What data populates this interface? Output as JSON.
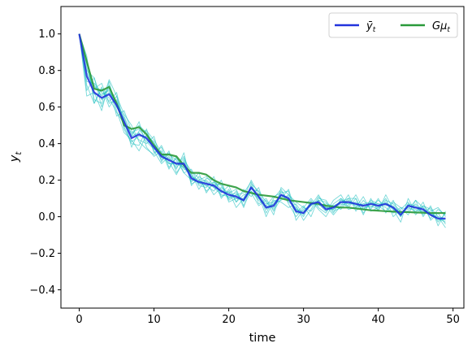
{
  "chart_data": {
    "type": "line",
    "xlabel": "time",
    "ylabel": "y",
    "ylabel_sub": "t",
    "xlim": [
      -2.45,
      51.45
    ],
    "ylim": [
      -0.5,
      1.15
    ],
    "xticks": [
      0,
      10,
      20,
      30,
      40,
      50
    ],
    "yticks": [
      -0.4,
      -0.2,
      0.0,
      0.2,
      0.4,
      0.6,
      0.8,
      1.0
    ],
    "xtick_labels": [
      "0",
      "10",
      "20",
      "30",
      "40",
      "50"
    ],
    "ytick_labels": [
      "−0.4",
      "−0.2",
      "0.0",
      "0.2",
      "0.4",
      "0.6",
      "0.8",
      "1.0"
    ],
    "grid": false,
    "legend": {
      "placement": "top-right",
      "entries": [
        {
          "key": "ybar",
          "base": "ȳ",
          "sub": "t",
          "color": "#2233dd"
        },
        {
          "key": "gmu",
          "base": "Gμ",
          "sub": "t",
          "color": "#2a9a3a"
        }
      ]
    },
    "colors": {
      "ybar": "#2233dd",
      "gmu": "#2a9a3a",
      "samples": "#20c0c0"
    },
    "x": [
      0,
      1,
      2,
      3,
      4,
      5,
      6,
      7,
      8,
      9,
      10,
      11,
      12,
      13,
      14,
      15,
      16,
      17,
      18,
      19,
      20,
      21,
      22,
      23,
      24,
      25,
      26,
      27,
      28,
      29,
      30,
      31,
      32,
      33,
      34,
      35,
      36,
      37,
      38,
      39,
      40,
      41,
      42,
      43,
      44,
      45,
      46,
      47,
      48,
      49
    ],
    "series": [
      {
        "name": "ȳ_t",
        "color": "#2233dd",
        "values": [
          1.0,
          0.77,
          0.68,
          0.65,
          0.67,
          0.61,
          0.52,
          0.43,
          0.45,
          0.43,
          0.38,
          0.33,
          0.31,
          0.29,
          0.29,
          0.21,
          0.19,
          0.18,
          0.17,
          0.14,
          0.12,
          0.11,
          0.09,
          0.16,
          0.11,
          0.05,
          0.06,
          0.12,
          0.1,
          0.03,
          0.02,
          0.07,
          0.08,
          0.04,
          0.05,
          0.08,
          0.08,
          0.07,
          0.06,
          0.07,
          0.06,
          0.07,
          0.05,
          0.01,
          0.06,
          0.05,
          0.04,
          0.01,
          -0.01,
          -0.01
        ]
      },
      {
        "name": "Gμ_t",
        "color": "#2a9a3a",
        "values": [
          1.0,
          0.85,
          0.7,
          0.69,
          0.71,
          0.62,
          0.5,
          0.48,
          0.49,
          0.45,
          0.39,
          0.34,
          0.34,
          0.33,
          0.28,
          0.24,
          0.24,
          0.23,
          0.2,
          0.18,
          0.17,
          0.16,
          0.14,
          0.13,
          0.12,
          0.115,
          0.11,
          0.1,
          0.09,
          0.085,
          0.08,
          0.075,
          0.07,
          0.06,
          0.055,
          0.05,
          0.05,
          0.045,
          0.04,
          0.035,
          0.033,
          0.03,
          0.028,
          0.026,
          0.025,
          0.023,
          0.022,
          0.02,
          0.02,
          0.02
        ]
      }
    ],
    "sample_paths": [
      [
        1.0,
        0.84,
        0.72,
        0.66,
        0.7,
        0.62,
        0.55,
        0.45,
        0.5,
        0.46,
        0.4,
        0.33,
        0.35,
        0.28,
        0.33,
        0.22,
        0.2,
        0.22,
        0.17,
        0.18,
        0.1,
        0.14,
        0.05,
        0.18,
        0.14,
        0.02,
        0.1,
        0.15,
        0.07,
        0.0,
        0.05,
        0.1,
        0.05,
        0.02,
        0.09,
        0.12,
        0.05,
        0.1,
        0.01,
        0.1,
        0.03,
        0.12,
        0.04,
        -0.03,
        0.1,
        0.02,
        0.08,
        -0.02,
        0.02,
        -0.04
      ],
      [
        1.0,
        0.72,
        0.62,
        0.71,
        0.6,
        0.66,
        0.48,
        0.4,
        0.39,
        0.48,
        0.35,
        0.38,
        0.27,
        0.32,
        0.26,
        0.24,
        0.15,
        0.21,
        0.2,
        0.1,
        0.15,
        0.08,
        0.12,
        0.13,
        0.06,
        0.09,
        0.01,
        0.16,
        0.12,
        0.06,
        -0.02,
        0.04,
        0.11,
        0.06,
        0.01,
        0.06,
        0.12,
        0.03,
        0.09,
        0.04,
        0.1,
        0.02,
        0.08,
        0.05,
        0.01,
        0.09,
        0.0,
        0.06,
        -0.05,
        0.03
      ],
      [
        1.0,
        0.8,
        0.76,
        0.6,
        0.72,
        0.55,
        0.58,
        0.47,
        0.42,
        0.4,
        0.44,
        0.3,
        0.36,
        0.24,
        0.3,
        0.19,
        0.24,
        0.13,
        0.19,
        0.17,
        0.09,
        0.12,
        0.13,
        0.19,
        0.07,
        0.1,
        0.03,
        0.1,
        0.15,
        0.02,
        0.06,
        0.0,
        0.1,
        0.09,
        0.03,
        0.05,
        0.1,
        0.1,
        0.02,
        0.08,
        0.06,
        0.03,
        0.09,
        0.0,
        0.07,
        0.06,
        0.01,
        0.05,
        0.0,
        -0.06
      ],
      [
        1.0,
        0.88,
        0.62,
        0.7,
        0.63,
        0.68,
        0.5,
        0.44,
        0.52,
        0.38,
        0.33,
        0.36,
        0.26,
        0.33,
        0.24,
        0.26,
        0.17,
        0.16,
        0.22,
        0.11,
        0.14,
        0.05,
        0.1,
        0.2,
        0.12,
        0.0,
        0.09,
        0.08,
        0.05,
        0.07,
        0.01,
        0.09,
        0.04,
        0.0,
        0.07,
        0.1,
        0.04,
        0.05,
        0.11,
        0.03,
        0.05,
        0.1,
        0.0,
        0.04,
        0.08,
        0.01,
        0.06,
        0.04,
        -0.03,
        0.02
      ],
      [
        1.0,
        0.66,
        0.68,
        0.58,
        0.74,
        0.58,
        0.46,
        0.42,
        0.36,
        0.45,
        0.36,
        0.29,
        0.33,
        0.26,
        0.35,
        0.17,
        0.22,
        0.19,
        0.12,
        0.16,
        0.13,
        0.15,
        0.06,
        0.14,
        0.09,
        0.06,
        0.11,
        0.13,
        0.14,
        -0.02,
        0.04,
        0.06,
        0.12,
        0.05,
        0.04,
        0.07,
        0.06,
        0.12,
        0.04,
        0.09,
        0.07,
        0.05,
        0.02,
        0.05,
        0.04,
        0.09,
        0.05,
        -0.01,
        0.04,
        0.01
      ],
      [
        1.0,
        0.79,
        0.7,
        0.73,
        0.62,
        0.64,
        0.53,
        0.38,
        0.47,
        0.47,
        0.42,
        0.35,
        0.29,
        0.3,
        0.27,
        0.23,
        0.18,
        0.17,
        0.14,
        0.2,
        0.08,
        0.1,
        0.1,
        0.15,
        0.14,
        0.08,
        0.04,
        0.12,
        0.08,
        0.05,
        0.0,
        0.08,
        0.06,
        0.07,
        0.06,
        0.04,
        0.09,
        0.06,
        0.07,
        0.05,
        0.09,
        0.06,
        0.06,
        0.02,
        0.05,
        0.03,
        0.06,
        0.02,
        -0.01,
        -0.02
      ],
      [
        1.0,
        0.86,
        0.64,
        0.62,
        0.75,
        0.66,
        0.56,
        0.5,
        0.41,
        0.37,
        0.34,
        0.39,
        0.3,
        0.23,
        0.31,
        0.25,
        0.21,
        0.14,
        0.18,
        0.13,
        0.17,
        0.08,
        0.15,
        0.11,
        0.16,
        0.04,
        0.07,
        0.09,
        0.12,
        0.08,
        0.05,
        0.03,
        0.09,
        0.08,
        0.02,
        0.1,
        0.07,
        0.08,
        0.05,
        0.06,
        0.04,
        0.09,
        0.07,
        0.03,
        0.03,
        0.07,
        0.02,
        0.03,
        0.05,
        0.0
      ],
      [
        1.0,
        0.74,
        0.73,
        0.68,
        0.65,
        0.57,
        0.51,
        0.46,
        0.48,
        0.42,
        0.38,
        0.31,
        0.34,
        0.31,
        0.24,
        0.2,
        0.19,
        0.2,
        0.16,
        0.12,
        0.11,
        0.13,
        0.08,
        0.17,
        0.1,
        0.06,
        0.05,
        0.14,
        0.09,
        0.04,
        0.03,
        0.07,
        0.07,
        0.03,
        0.06,
        0.08,
        0.1,
        0.05,
        0.07,
        0.08,
        0.06,
        0.07,
        0.04,
        0.01,
        0.06,
        0.05,
        0.05,
        0.01,
        -0.02,
        -0.01
      ],
      [
        1.0,
        0.69,
        0.76,
        0.64,
        0.68,
        0.63,
        0.49,
        0.41,
        0.44,
        0.44,
        0.41,
        0.32,
        0.32,
        0.27,
        0.32,
        0.18,
        0.2,
        0.17,
        0.19,
        0.15,
        0.1,
        0.12,
        0.09,
        0.14,
        0.1,
        0.07,
        0.08,
        0.11,
        0.11,
        0.02,
        0.02,
        0.06,
        0.09,
        0.04,
        0.04,
        0.09,
        0.08,
        0.07,
        0.04,
        0.07,
        0.05,
        0.08,
        0.05,
        0.0,
        0.07,
        0.04,
        0.03,
        0.02,
        -0.01,
        -0.03
      ],
      [
        1.0,
        0.82,
        0.67,
        0.67,
        0.69,
        0.6,
        0.54,
        0.44,
        0.46,
        0.41,
        0.37,
        0.34,
        0.29,
        0.29,
        0.27,
        0.22,
        0.18,
        0.19,
        0.16,
        0.14,
        0.13,
        0.1,
        0.09,
        0.16,
        0.11,
        0.05,
        0.07,
        0.12,
        0.1,
        0.04,
        0.02,
        0.07,
        0.08,
        0.05,
        0.05,
        0.08,
        0.07,
        0.07,
        0.06,
        0.07,
        0.07,
        0.07,
        0.05,
        0.01,
        0.06,
        0.05,
        0.04,
        0.01,
        0.0,
        -0.01
      ]
    ]
  }
}
